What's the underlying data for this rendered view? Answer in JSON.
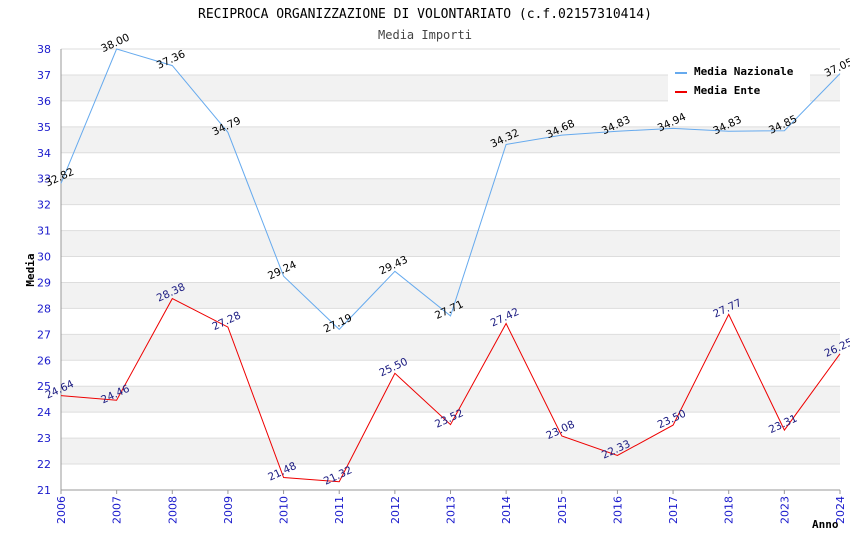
{
  "chart_data": {
    "type": "line",
    "title": "RECIPROCA ORGANIZZAZIONE DI VOLONTARIATO (c.f.02157310414)",
    "subtitle": "Media Importi",
    "xlabel": "Anno",
    "ylabel": "Media",
    "categories": [
      "2006",
      "2007",
      "2008",
      "2009",
      "2010",
      "2011",
      "2012",
      "2013",
      "2014",
      "2015",
      "2016",
      "2017",
      "2018",
      "2023",
      "2024"
    ],
    "y_ticks": [
      "21",
      "22",
      "23",
      "24",
      "25",
      "26",
      "27",
      "28",
      "29",
      "30",
      "31",
      "32",
      "33",
      "34",
      "35",
      "36",
      "37",
      "38"
    ],
    "ylim": [
      21,
      38
    ],
    "grid": true,
    "legend_position": "top-right",
    "series": [
      {
        "name": "Media Nazionale",
        "color": "#66aaee",
        "label_color": "#000000",
        "values": [
          32.82,
          38.0,
          37.36,
          34.79,
          29.24,
          27.19,
          29.43,
          27.71,
          34.32,
          34.68,
          34.83,
          34.94,
          34.83,
          34.85,
          37.05
        ],
        "labels": [
          "32.82",
          "38.00",
          "37.36",
          "34.79",
          "29.24",
          "27.19",
          "29.43",
          "27.71",
          "34.32",
          "34.68",
          "34.83",
          "34.94",
          "34.83",
          "34.85",
          "37.05"
        ]
      },
      {
        "name": "Media Ente",
        "color": "#ee0000",
        "label_color": "#1a1a80",
        "values": [
          24.64,
          24.46,
          28.38,
          27.28,
          21.48,
          21.32,
          25.5,
          23.52,
          27.42,
          23.08,
          22.33,
          23.5,
          27.77,
          23.31,
          26.25
        ],
        "labels": [
          "24.64",
          "24.46",
          "28.38",
          "27.28",
          "21.48",
          "21.32",
          "25.50",
          "23.52",
          "27.42",
          "23.08",
          "22.33",
          "23.50",
          "27.77",
          "23.31",
          "26.25"
        ]
      }
    ]
  }
}
